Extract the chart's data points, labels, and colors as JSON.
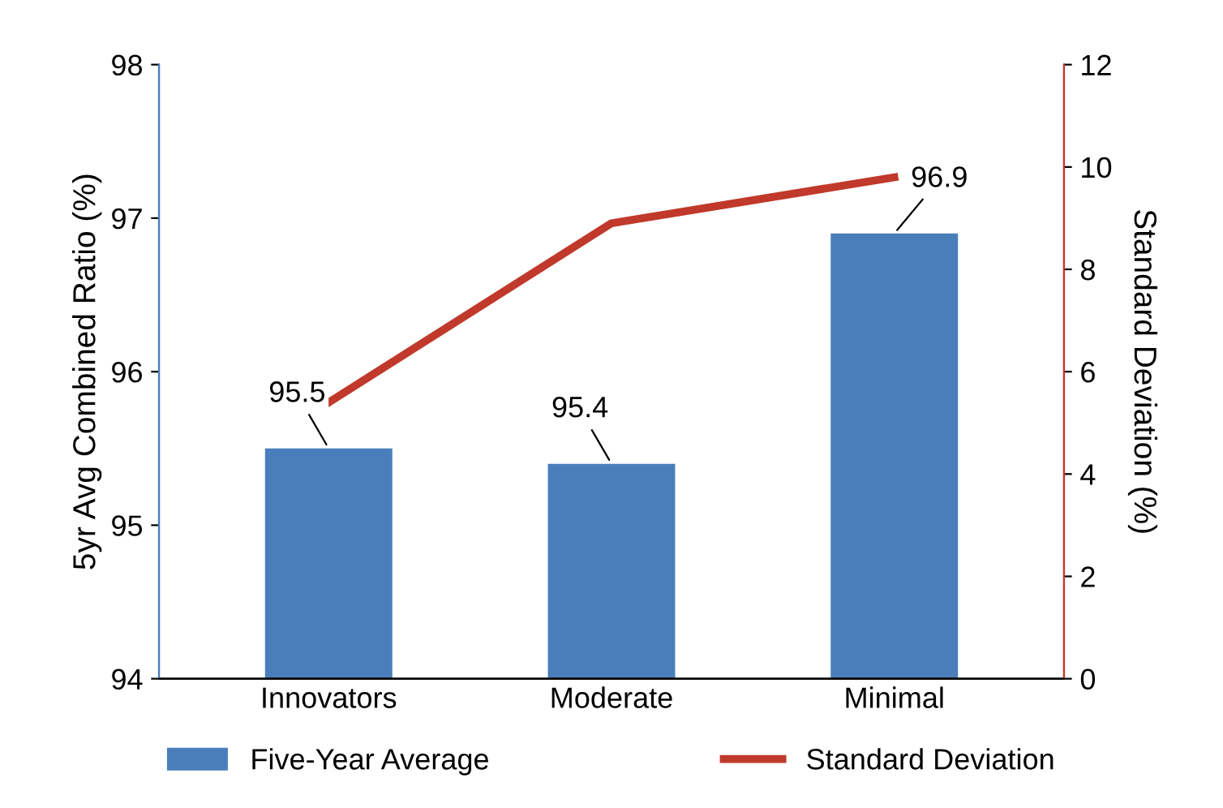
{
  "chart_data": {
    "type": "bar",
    "categories": [
      "Innovators",
      "Moderate",
      "Minimal"
    ],
    "ylabel": "5yr Avg Combined Ratio (%)",
    "y2label": "Standard Deviation (%)",
    "ylim": [
      94,
      98
    ],
    "yticks": [
      94,
      95,
      96,
      97,
      98
    ],
    "y2lim": [
      0,
      12
    ],
    "y2ticks": [
      0,
      2,
      4,
      6,
      8,
      10,
      12
    ],
    "series": [
      {
        "name": "Five-Year Average",
        "color": "#4a7ebb",
        "values": [
          95.5,
          95.4,
          96.9
        ],
        "data_labels": true
      },
      {
        "name": "Standard Deviation",
        "type": "line",
        "axis": "y2",
        "color": "#c0392b",
        "values": [
          5.4,
          8.9,
          9.8
        ],
        "marker": "none"
      }
    ],
    "legend": "bottom",
    "grid": false
  }
}
